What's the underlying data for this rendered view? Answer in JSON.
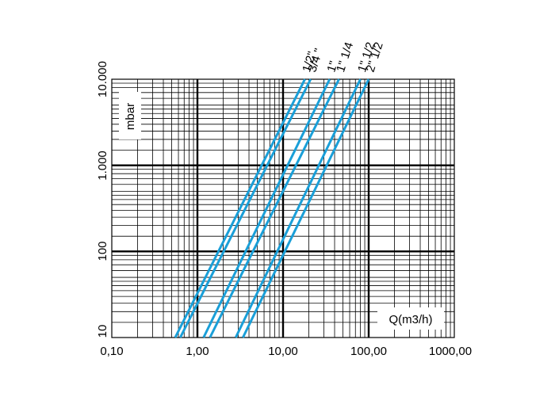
{
  "chart_data": {
    "type": "line",
    "x_scale": "log",
    "y_scale": "log",
    "xlim": [
      0.1,
      1000
    ],
    "ylim": [
      10,
      10000
    ],
    "xlabel": "Q(m3/h)",
    "ylabel": "mbar",
    "x_ticks": [
      {
        "value": 0.1,
        "label": "0,10"
      },
      {
        "value": 1,
        "label": "1,00"
      },
      {
        "value": 10,
        "label": "10,00"
      },
      {
        "value": 100,
        "label": "100,00"
      },
      {
        "value": 1000,
        "label": "1000,00"
      }
    ],
    "y_ticks": [
      {
        "value": 10,
        "label": "10"
      },
      {
        "value": 100,
        "label": "100"
      },
      {
        "value": 1000,
        "label": "1.000"
      },
      {
        "value": 10000,
        "label": "10.000"
      }
    ],
    "grid": true,
    "line_color": "#1a9fd8",
    "series": [
      {
        "name": "1/2\"",
        "points": [
          [
            0.55,
            10
          ],
          [
            18,
            10000
          ]
        ]
      },
      {
        "name": "3/4 \"",
        "points": [
          [
            0.63,
            10
          ],
          [
            21,
            10000
          ]
        ]
      },
      {
        "name": "1\"",
        "points": [
          [
            1.18,
            10
          ],
          [
            35,
            10000
          ]
        ]
      },
      {
        "name": "1\" 1/4",
        "points": [
          [
            1.4,
            10
          ],
          [
            45,
            10000
          ]
        ]
      },
      {
        "name": "1\" 1/2",
        "points": [
          [
            2.8,
            10
          ],
          [
            80,
            10000
          ]
        ]
      },
      {
        "name": "2\" 1/2",
        "points": [
          [
            3.4,
            10
          ],
          [
            100,
            10000
          ]
        ]
      }
    ]
  }
}
